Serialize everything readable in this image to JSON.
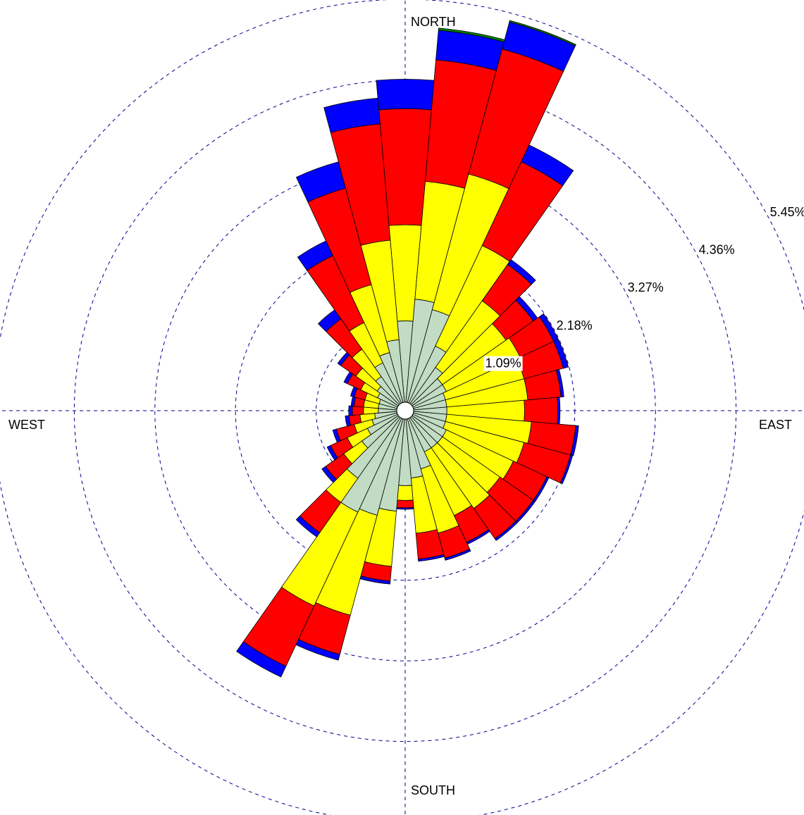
{
  "chart_data": {
    "type": "windrose",
    "directions_count": 36,
    "direction_start_deg": 0,
    "direction_step_deg": 10,
    "direction_labels": {
      "north": "NORTH",
      "east": "EAST",
      "south": "SOUTH",
      "west": "WEST"
    },
    "ring_values": [
      1.09,
      2.18,
      3.27,
      4.36,
      5.45
    ],
    "ring_labels": [
      "1.09%",
      "2.18%",
      "3.27%",
      "4.36%",
      "5.45%"
    ],
    "unit": "%",
    "rmax": 5.45,
    "grid": true,
    "bin_colors": [
      "#c1dcc3",
      "#ffff00",
      "#ff0000",
      "#0000ff",
      "#008000"
    ],
    "cumulative": [
      [
        1.1,
        2.4,
        3.97,
        4.37,
        4.37
      ],
      [
        1.4,
        3.0,
        4.65,
        5.05,
        5.08
      ],
      [
        1.3,
        3.2,
        4.95,
        5.33,
        5.35
      ],
      [
        0.85,
        2.35,
        3.6,
        3.85,
        3.85
      ],
      [
        0.6,
        1.7,
        2.3,
        2.38,
        2.38
      ],
      [
        0.5,
        1.55,
        2.0,
        2.07,
        2.07
      ],
      [
        0.5,
        1.6,
        2.1,
        2.17,
        2.17
      ],
      [
        0.45,
        1.55,
        2.1,
        2.17,
        2.17
      ],
      [
        0.45,
        1.55,
        2.0,
        2.04,
        2.04
      ],
      [
        0.45,
        1.5,
        1.95,
        1.98,
        1.98
      ],
      [
        0.45,
        1.6,
        2.2,
        2.24,
        2.24
      ],
      [
        0.45,
        1.55,
        2.2,
        2.23,
        2.23
      ],
      [
        0.5,
        1.5,
        2.0,
        2.03,
        2.03
      ],
      [
        0.5,
        1.45,
        2.0,
        2.03,
        2.03
      ],
      [
        0.5,
        1.5,
        2.0,
        2.03,
        2.03
      ],
      [
        0.5,
        1.45,
        1.85,
        1.88,
        1.88
      ],
      [
        0.7,
        1.6,
        1.95,
        1.98,
        1.98
      ],
      [
        0.8,
        1.55,
        1.9,
        1.93,
        1.93
      ],
      [
        0.9,
        1.1,
        1.2,
        1.22,
        1.22
      ],
      [
        1.25,
        2.0,
        2.2,
        2.24,
        2.24
      ],
      [
        1.35,
        2.75,
        3.3,
        3.38,
        3.38
      ],
      [
        1.4,
        2.8,
        3.7,
        3.86,
        3.86
      ],
      [
        1.0,
        1.4,
        1.9,
        1.97,
        1.97
      ],
      [
        0.6,
        0.9,
        1.2,
        1.26,
        1.26
      ],
      [
        0.45,
        0.75,
        1.0,
        1.05,
        1.05
      ],
      [
        0.35,
        0.6,
        0.85,
        0.9,
        0.9
      ],
      [
        0.3,
        0.5,
        0.65,
        0.7,
        0.7
      ],
      [
        0.25,
        0.45,
        0.6,
        0.65,
        0.65
      ],
      [
        0.25,
        0.45,
        0.58,
        0.62,
        0.62
      ],
      [
        0.25,
        0.45,
        0.6,
        0.65,
        0.65
      ],
      [
        0.3,
        0.55,
        0.75,
        0.8,
        0.8
      ],
      [
        0.35,
        0.7,
        0.95,
        1.0,
        1.0
      ],
      [
        0.45,
        0.9,
        1.4,
        1.55,
        1.55
      ],
      [
        0.6,
        1.2,
        2.2,
        2.42,
        2.42
      ],
      [
        0.7,
        1.65,
        3.0,
        3.37,
        3.37
      ],
      [
        0.85,
        2.2,
        3.78,
        4.13,
        4.13
      ]
    ]
  }
}
